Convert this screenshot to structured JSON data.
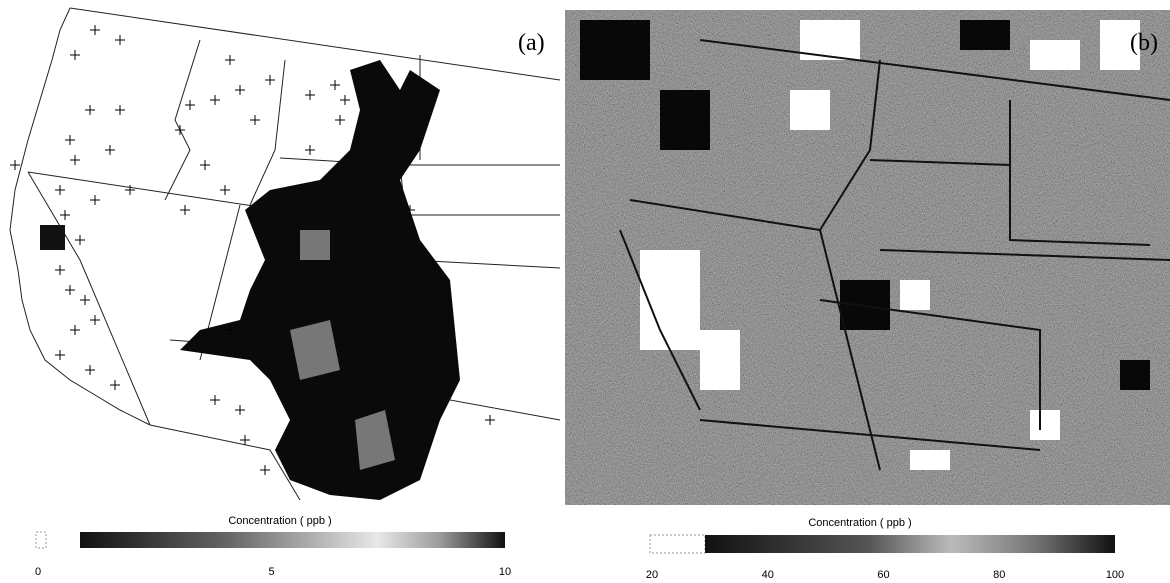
{
  "panels": [
    {
      "label": "(a)",
      "colorbar": {
        "title": "Concentration ( ppb )",
        "range": [
          0,
          10
        ],
        "ticks": [
          0,
          5,
          10
        ]
      }
    },
    {
      "label": "(b)",
      "colorbar": {
        "title": "Concentration ( ppb )",
        "range": [
          20,
          100
        ],
        "ticks": [
          20,
          40,
          60,
          80,
          100
        ]
      }
    }
  ]
}
